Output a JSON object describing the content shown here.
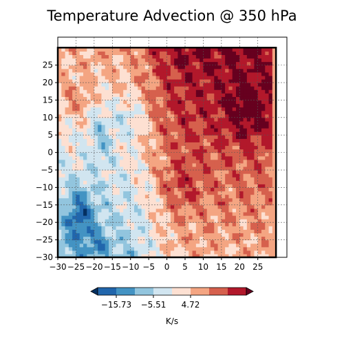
{
  "chart_data": {
    "type": "heatmap",
    "title": "Temperature Advection @ 350 hPa",
    "xlabel": "",
    "ylabel": "",
    "xlim": [
      -30,
      33
    ],
    "ylim": [
      -30,
      33
    ],
    "x_ticks": [
      -30,
      -25,
      -20,
      -15,
      -10,
      -5,
      0,
      5,
      10,
      15,
      20,
      25
    ],
    "y_ticks": [
      -30,
      -25,
      -20,
      -15,
      -10,
      -5,
      0,
      5,
      10,
      15,
      20,
      25
    ],
    "grid": true,
    "levels": [
      -20.84,
      -15.73,
      -10.62,
      -5.51,
      -0.39,
      4.72,
      9.83,
      14.94,
      20.06
    ],
    "colormap": [
      "#053061",
      "#2166ac",
      "#4393c3",
      "#92c5de",
      "#d1e5f0",
      "#fde0d2",
      "#f4a582",
      "#d6604d",
      "#b2182b",
      "#67001f"
    ],
    "colorbar": {
      "label": "K/s",
      "tick_labels": [
        "−15.73",
        "−5.51",
        "4.72"
      ],
      "tick_values": [
        -15.73,
        -5.51,
        4.72
      ],
      "extend": "both"
    },
    "box": {
      "x": [
        -30,
        30
      ],
      "y": [
        -30,
        30
      ]
    }
  }
}
